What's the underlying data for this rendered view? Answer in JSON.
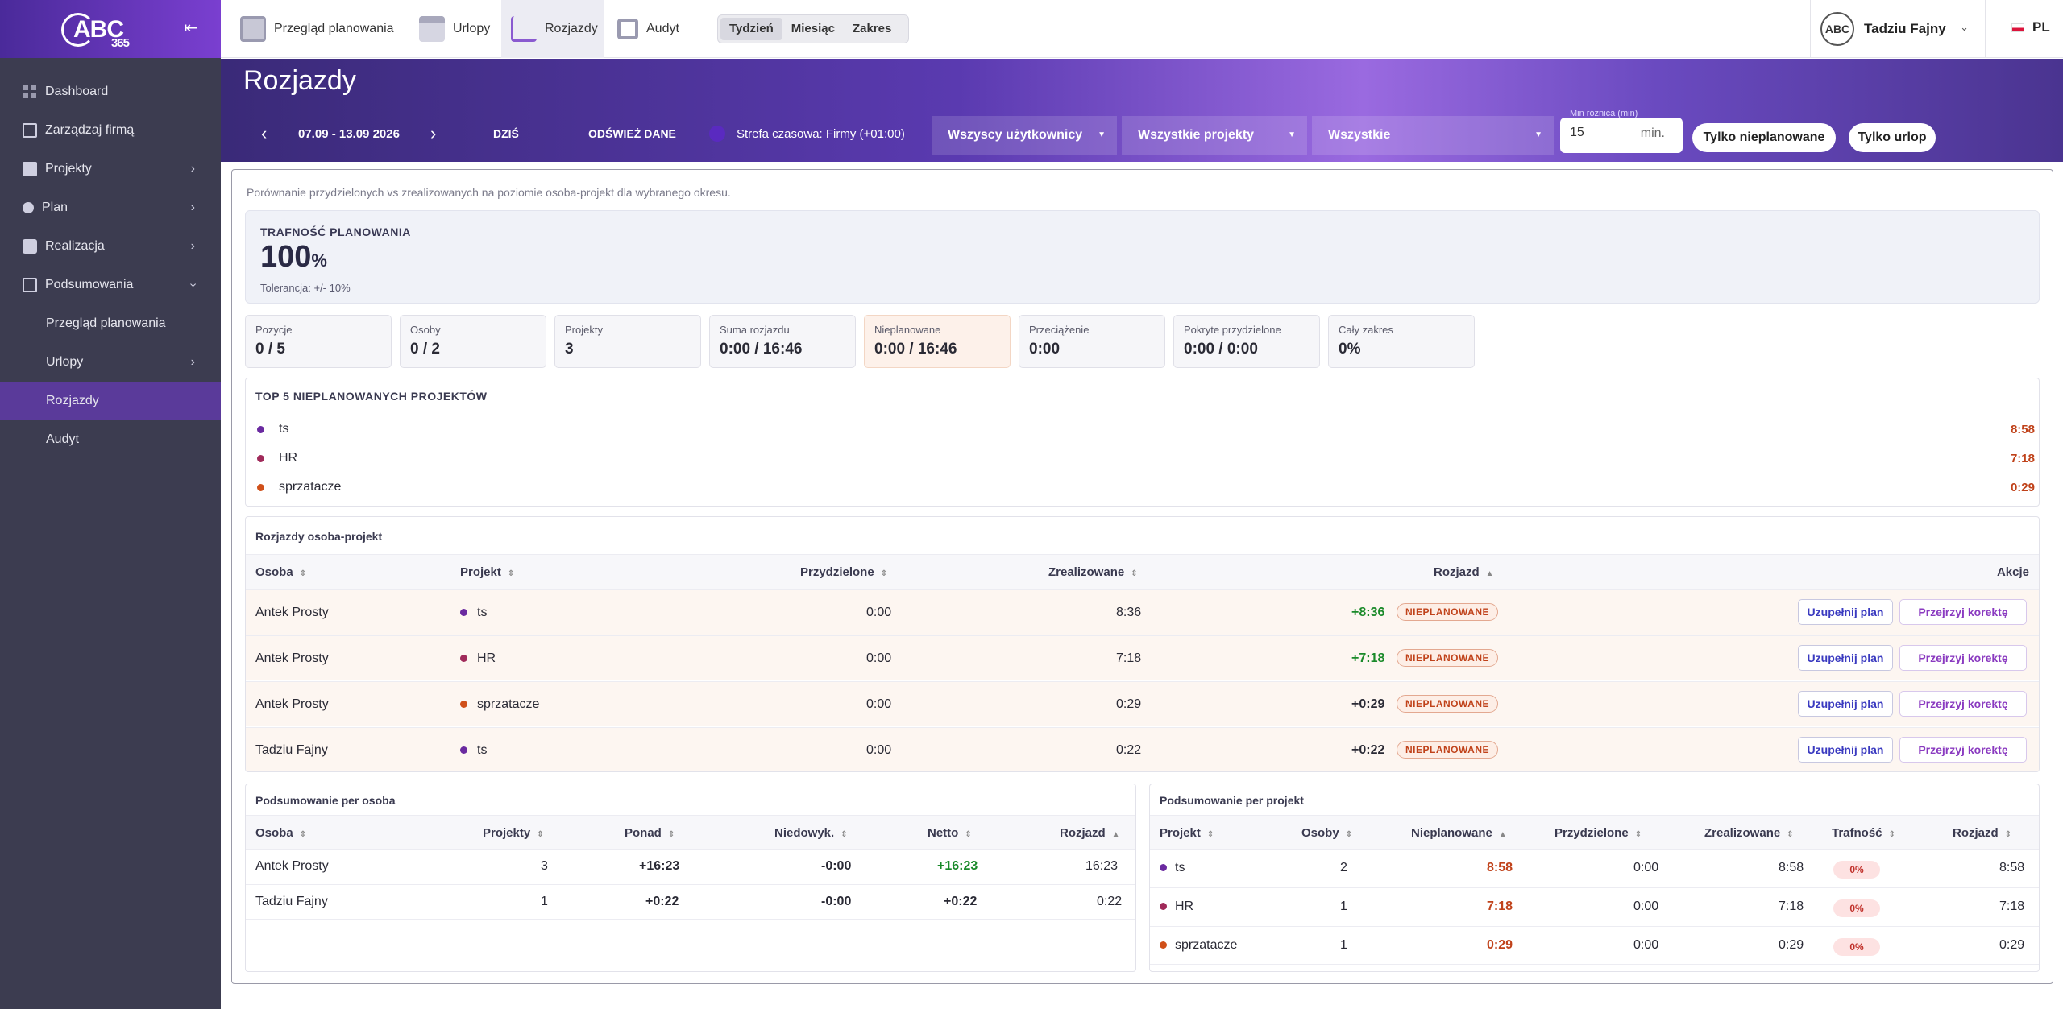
{
  "brand": {
    "logo_text": "ABC",
    "logo_sub": "365"
  },
  "sidebar": {
    "items": [
      {
        "label": "Dashboard"
      },
      {
        "label": "Zarządzaj firmą"
      },
      {
        "label": "Projekty"
      },
      {
        "label": "Plan"
      },
      {
        "label": "Realizacja"
      },
      {
        "label": "Podsumowania"
      },
      {
        "label": "Przegląd planowania"
      },
      {
        "label": "Urlopy"
      },
      {
        "label": "Rozjazdy"
      },
      {
        "label": "Audyt"
      }
    ]
  },
  "topbar": {
    "tabs": [
      {
        "label": "Przegląd planowania"
      },
      {
        "label": "Urlopy"
      },
      {
        "label": "Rozjazdy"
      },
      {
        "label": "Audyt"
      }
    ],
    "period": [
      {
        "label": "Tydzień"
      },
      {
        "label": "Miesiąc"
      },
      {
        "label": "Zakres"
      }
    ],
    "user": {
      "avatar": "ABC",
      "name": "Tadziu Fajny"
    },
    "lang": "PL"
  },
  "page": {
    "title": "Rozjazdy"
  },
  "filters": {
    "date_range": "07.09 - 13.09 2026",
    "today": "DZIŚ",
    "refresh": "ODŚWIEŻ DANE",
    "timezone": "Strefa czasowa: Firmy (+01:00)",
    "users": "Wszyscy użytkownicy",
    "projects": "Wszystkie projekty",
    "all": "Wszystkie",
    "min_label": "Min różnica (min)",
    "min_value": "15",
    "min_unit": "min.",
    "only_unplanned": "Tylko nieplanowane",
    "only_leave": "Tylko urlop"
  },
  "description": "Porównanie przydzielonych vs zrealizowanych na poziomie osoba-projekt dla wybranego okresu.",
  "accuracy": {
    "label": "TRAFNOŚĆ PLANOWANIA",
    "value": "100",
    "unit": "%",
    "tolerance": "Tolerancja: +/- 10%"
  },
  "stats": [
    {
      "label": "Pozycje",
      "value": "0 / 5"
    },
    {
      "label": "Osoby",
      "value": "0 / 2"
    },
    {
      "label": "Projekty",
      "value": "3"
    },
    {
      "label": "Suma rozjazdu",
      "value": "0:00 / 16:46"
    },
    {
      "label": "Nieplanowane",
      "value": "0:00 / 16:46"
    },
    {
      "label": "Przeciążenie",
      "value": "0:00"
    },
    {
      "label": "Pokryte przydzielone",
      "value": "0:00 / 0:00"
    },
    {
      "label": "Cały zakres",
      "value": "0%"
    }
  ],
  "top5": {
    "title": "TOP 5 NIEPLANOWANYCH PROJEKTÓW",
    "items": [
      {
        "name": "ts",
        "value": "8:58",
        "color": "#6a2aa0"
      },
      {
        "name": "HR",
        "value": "7:18",
        "color": "#a02a5a"
      },
      {
        "name": "sprzatacze",
        "value": "0:29",
        "color": "#d0501a"
      }
    ]
  },
  "person_project": {
    "title": "Rozjazdy osoba-projekt",
    "headers": [
      "Osoba",
      "Projekt",
      "Przydzielone",
      "Zrealizowane",
      "Rozjazd",
      "Akcje"
    ],
    "rows": [
      {
        "person": "Antek Prosty",
        "project": "ts",
        "color": "#6a2aa0",
        "assigned": "0:00",
        "realized": "8:36",
        "diff": "+8:36",
        "diff_green": true,
        "badge": "NIEPLANOWANE",
        "a1": "Uzupełnij plan",
        "a2": "Przejrzyj korektę"
      },
      {
        "person": "Antek Prosty",
        "project": "HR",
        "color": "#a02a5a",
        "assigned": "0:00",
        "realized": "7:18",
        "diff": "+7:18",
        "diff_green": true,
        "badge": "NIEPLANOWANE",
        "a1": "Uzupełnij plan",
        "a2": "Przejrzyj korektę"
      },
      {
        "person": "Antek Prosty",
        "project": "sprzatacze",
        "color": "#d0501a",
        "assigned": "0:00",
        "realized": "0:29",
        "diff": "+0:29",
        "diff_green": false,
        "badge": "NIEPLANOWANE",
        "a1": "Uzupełnij plan",
        "a2": "Przejrzyj korektę"
      },
      {
        "person": "Tadziu Fajny",
        "project": "ts",
        "color": "#6a2aa0",
        "assigned": "0:00",
        "realized": "0:22",
        "diff": "+0:22",
        "diff_green": false,
        "badge": "NIEPLANOWANE",
        "a1": "Uzupełnij plan",
        "a2": "Przejrzyj korektę"
      }
    ]
  },
  "per_person": {
    "title": "Podsumowanie per osoba",
    "headers": [
      "Osoba",
      "Projekty",
      "Ponad",
      "Niedowyk.",
      "Netto",
      "Rozjazd"
    ],
    "rows": [
      {
        "person": "Antek Prosty",
        "projects": "3",
        "over": "+16:23",
        "under": "-0:00",
        "net": "+16:23",
        "diff": "16:23",
        "net_green": true
      },
      {
        "person": "Tadziu Fajny",
        "projects": "1",
        "over": "+0:22",
        "under": "-0:00",
        "net": "+0:22",
        "diff": "0:22",
        "net_green": false
      }
    ]
  },
  "per_project": {
    "title": "Podsumowanie per projekt",
    "headers": [
      "Projekt",
      "Osoby",
      "Nieplanowane",
      "Przydzielone",
      "Zrealizowane",
      "Trafność",
      "Rozjazd"
    ],
    "rows": [
      {
        "project": "ts",
        "color": "#6a2aa0",
        "people": "2",
        "unplanned": "8:58",
        "assigned": "0:00",
        "realized": "8:58",
        "accuracy": "0%",
        "diff": "8:58"
      },
      {
        "project": "HR",
        "color": "#a02a5a",
        "people": "1",
        "unplanned": "7:18",
        "assigned": "0:00",
        "realized": "7:18",
        "accuracy": "0%",
        "diff": "7:18"
      },
      {
        "project": "sprzatacze",
        "color": "#d0501a",
        "people": "1",
        "unplanned": "0:29",
        "assigned": "0:00",
        "realized": "0:29",
        "accuracy": "0%",
        "diff": "0:29"
      }
    ]
  }
}
